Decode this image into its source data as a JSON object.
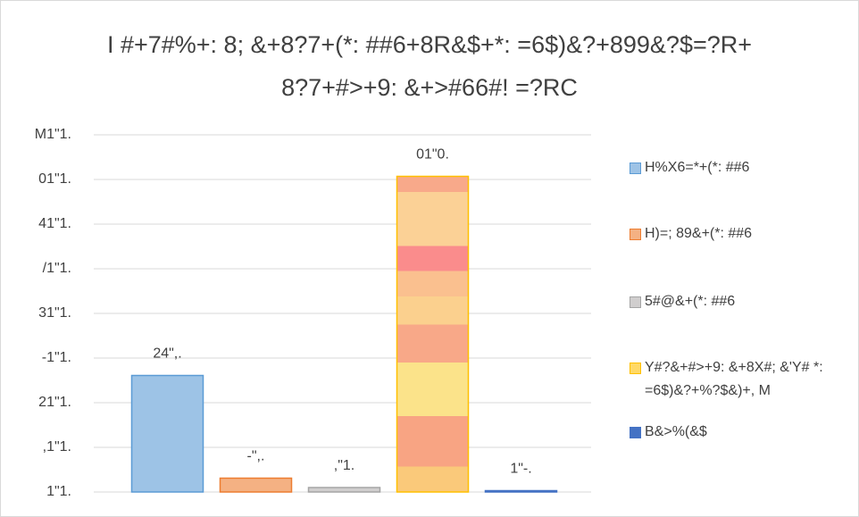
{
  "chart_data": {
    "type": "bar",
    "title_lines": [
      "I #+7#%+: 8; &+8?7+(*: ##6+8R&$+*: =6$)&?+899&?$=?R+",
      "8?7+#>+9: &+>#66#! =?RC"
    ],
    "categories": [
      null
    ],
    "series": [
      {
        "name": "H%X6=*+(*: ##6",
        "color": "#9dc3e6",
        "values": [
          26.1
        ],
        "value_labels": [
          "24\",."
        ]
      },
      {
        "name": "H)=; 89&+(*: ##6",
        "color": "#f4b183",
        "values": [
          3.1
        ],
        "value_labels": [
          "-\",."
        ]
      },
      {
        "name": "5#@&+(*: ##6",
        "color": "#d0cece",
        "values": [
          1.0
        ],
        "value_labels": [
          ",\"1."
        ]
      },
      {
        "name": "Y#?&+#>+9: &+8X#; &'Y# *: =6$)&?+%?$&)+, M",
        "color": "#ffd966",
        "values": [
          70.7
        ],
        "value_labels": [
          "01\"0."
        ]
      },
      {
        "name": "B&>%(&$",
        "color": "#4472c4",
        "values": [
          0.3
        ],
        "value_labels": [
          "1\"-."
        ]
      }
    ],
    "ylim": [
      0,
      80
    ],
    "yticks": [
      {
        "value": 0,
        "label": "1\"1."
      },
      {
        "value": 10,
        "label": ",1\"1."
      },
      {
        "value": 20,
        "label": "21\"1."
      },
      {
        "value": 30,
        "label": "-1\"1."
      },
      {
        "value": 40,
        "label": "31\"1."
      },
      {
        "value": 50,
        "label": "/1\"1."
      },
      {
        "value": 60,
        "label": "41\"1."
      },
      {
        "value": 70,
        "label": "01\"1."
      },
      {
        "value": 80,
        "label": "M1\"1."
      }
    ],
    "grid": true,
    "legend": "right"
  }
}
